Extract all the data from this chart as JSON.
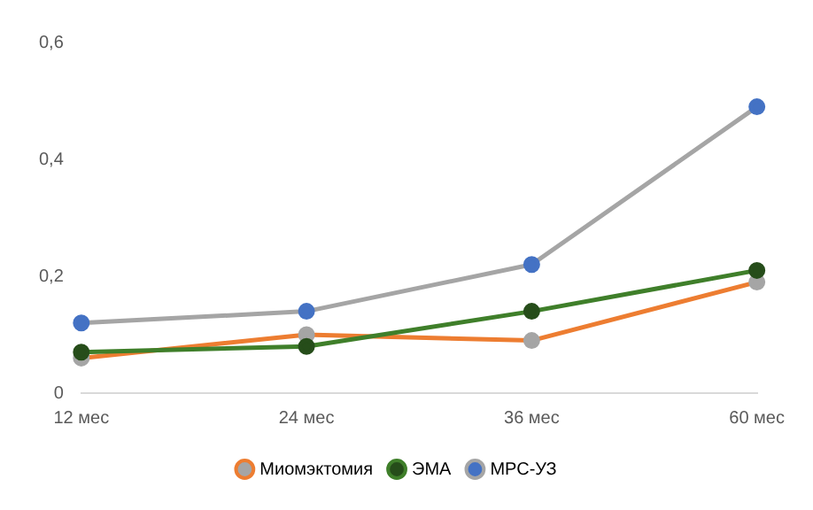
{
  "chart_data": {
    "type": "line",
    "categories": [
      "12 мес",
      "24 мес",
      "36 мес",
      "60 мес"
    ],
    "series": [
      {
        "name": "Миомэктомия",
        "color": "#ed7d31",
        "colors": [
          "#a5a5a5",
          "#a5a5a5",
          "#a5a5a5",
          "#a5a5a5"
        ],
        "values": [
          0.06,
          0.1,
          0.09,
          0.19
        ]
      },
      {
        "name": "ЭМА",
        "color": "#3f7f2a",
        "colors": [
          "#264d1a",
          "#264d1a",
          "#264d1a",
          "#264d1a"
        ],
        "values": [
          0.07,
          0.08,
          0.14,
          0.21
        ]
      },
      {
        "name": "МРС-УЗ",
        "color": "#a5a5a5",
        "colors": [
          "#4472c4",
          "#4472c4",
          "#4472c4",
          "#4472c4"
        ],
        "values": [
          0.12,
          0.14,
          0.22,
          0.49
        ]
      }
    ],
    "ylim": [
      0,
      0.6
    ],
    "yticks": [
      0,
      {
        "value": 0.2,
        "label": "0,2"
      },
      {
        "value": 0.4,
        "label": "0,4"
      },
      {
        "value": 0.6,
        "label": "0,6"
      }
    ],
    "grid": false,
    "legend": "bottom",
    "marker": "circle",
    "line_style": "solid"
  }
}
